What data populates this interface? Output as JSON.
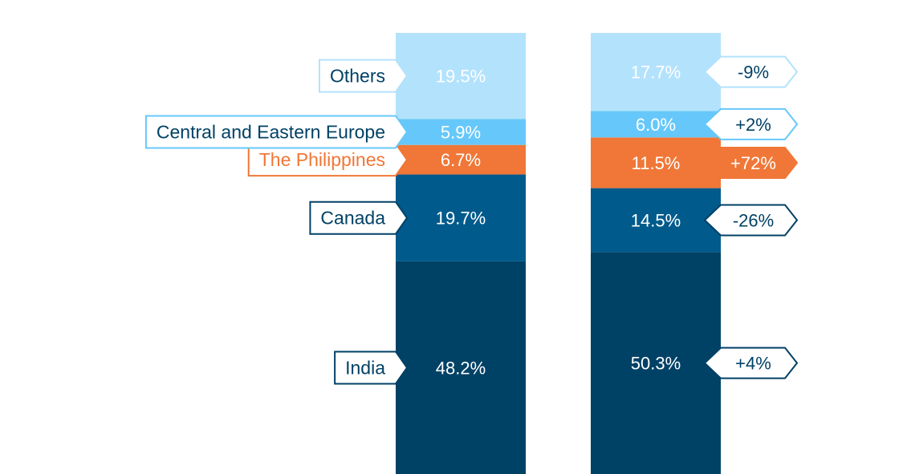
{
  "chart_data": {
    "type": "bar",
    "stacked": true,
    "orientation": "vertical",
    "categories": [
      "India",
      "Canada",
      "The Philippines",
      "Central and Eastern Europe",
      "Others"
    ],
    "series": [
      {
        "values": [
          48.2,
          19.7,
          6.7,
          5.9,
          19.5
        ],
        "labels": [
          "48.2%",
          "19.7%",
          "6.7%",
          "5.9%",
          "19.5%"
        ]
      },
      {
        "values": [
          50.3,
          14.5,
          11.5,
          6.0,
          17.7
        ],
        "labels": [
          "50.3%",
          "14.5%",
          "11.5%",
          "6.0%",
          "17.7%"
        ]
      }
    ],
    "changes": [
      "+4%",
      "-26%",
      "+72%",
      "+2%",
      "-9%"
    ],
    "category_colors": {
      "India": "#004166",
      "Canada": "#005a8c",
      "The Philippines": "#f07737",
      "Central and Eastern Europe": "#66c8fa",
      "Others": "#b3e2fc"
    },
    "label_colors": {
      "India": "#004166",
      "Canada": "#004166",
      "The Philippines": "#f07737",
      "Central and Eastern Europe": "#004166",
      "Others": "#004166"
    },
    "tag_border_colors": {
      "India": "#004166",
      "Canada": "#004166",
      "The Philippines": "#f07737",
      "Central and Eastern Europe": "#66c8fa",
      "Others": "#b3e2fc"
    },
    "highlight_category": "The Philippines"
  }
}
